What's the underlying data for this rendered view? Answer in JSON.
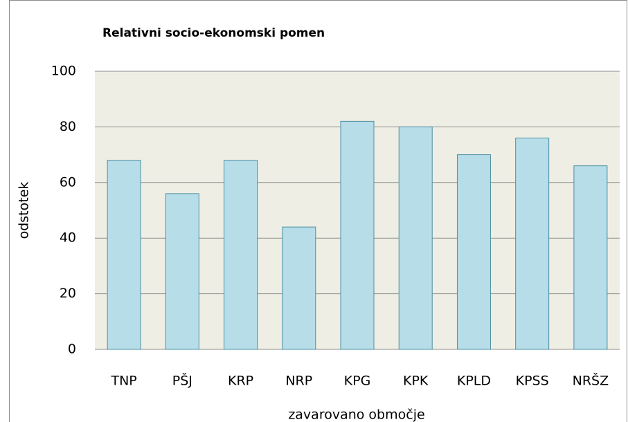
{
  "chart_data": {
    "type": "bar",
    "title": "Relativni socio-ekonomski pomen",
    "x_label": "zavarovano območje",
    "y_label": "odstotek",
    "categories": [
      "TNP",
      "PŠJ",
      "KRP",
      "NRP",
      "KPG",
      "KPK",
      "KPLD",
      "KPSS",
      "NRŠZ"
    ],
    "values": [
      68,
      56,
      68,
      44,
      82,
      80,
      70,
      76,
      66
    ],
    "color": "#b7dde8",
    "edge_color": "#4b8fa3",
    "background": "#eeeee4",
    "ylim": [
      0,
      100
    ],
    "yticks": [
      0,
      20,
      40,
      60,
      80,
      100
    ],
    "grid": true
  }
}
